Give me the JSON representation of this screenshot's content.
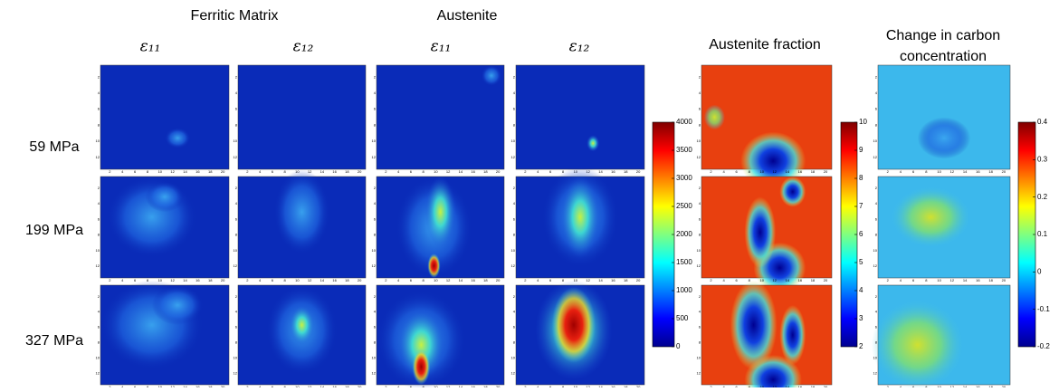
{
  "headers": {
    "groups": [
      "Ferritic Matrix",
      "Austenite"
    ],
    "strains": [
      "ε₁₁",
      "ε₁₂",
      "ε₁₁",
      "ε₁₂"
    ],
    "fraction": "Austenite fraction",
    "carbon": [
      "Change in carbon",
      "concentration"
    ]
  },
  "rows": [
    "59 MPa",
    "199 MPa",
    "327 MPa"
  ],
  "panel_axes": {
    "xticks": [
      2,
      4,
      6,
      8,
      10,
      12,
      14,
      16,
      18,
      20
    ],
    "yticks": [
      2,
      4,
      6,
      8,
      10,
      12
    ]
  },
  "colorbars": [
    {
      "lim": [
        0,
        4000
      ],
      "ticks": [
        0,
        500,
        1000,
        1500,
        2000,
        2500,
        3000,
        3500,
        4000
      ]
    },
    {
      "lim": [
        2,
        10
      ],
      "ticks": [
        2,
        3,
        4,
        5,
        6,
        7,
        8,
        9,
        10
      ]
    },
    {
      "lim": [
        -0.2,
        0.4
      ],
      "ticks": [
        -0.2,
        -0.1,
        0,
        0.1,
        0.2,
        0.3,
        0.4
      ]
    }
  ]
}
